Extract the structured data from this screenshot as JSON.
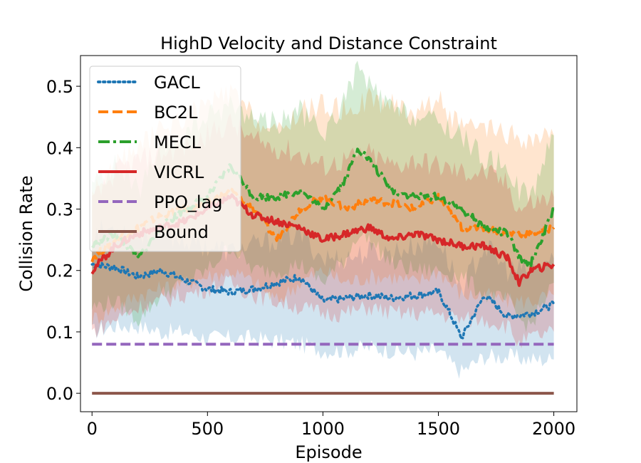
{
  "chart_data": {
    "type": "line",
    "title": "HighD Velocity and Distance Constraint",
    "xlabel": "Episode",
    "ylabel": "Collision Rate",
    "xlim": [
      -50,
      2100
    ],
    "ylim": [
      -0.03,
      0.55
    ],
    "xticks": [
      0,
      500,
      1000,
      1500,
      2000
    ],
    "xtick_labels": [
      "0",
      "500",
      "1000",
      "1500",
      "2000"
    ],
    "yticks": [
      0.0,
      0.1,
      0.2,
      0.3,
      0.4,
      0.5
    ],
    "ytick_labels": [
      "0.0",
      "0.1",
      "0.2",
      "0.3",
      "0.4",
      "0.5"
    ],
    "legend_position": "top-left",
    "series": [
      {
        "name": "GACL",
        "color": "#1f77b4",
        "style": "dotted",
        "band": true,
        "x": [
          0,
          100,
          200,
          300,
          400,
          500,
          600,
          700,
          800,
          900,
          1000,
          1100,
          1200,
          1300,
          1400,
          1500,
          1550,
          1600,
          1700,
          1800,
          1900,
          2000
        ],
        "values": [
          0.21,
          0.205,
          0.19,
          0.2,
          0.185,
          0.17,
          0.165,
          0.17,
          0.18,
          0.19,
          0.15,
          0.155,
          0.16,
          0.155,
          0.16,
          0.165,
          0.13,
          0.09,
          0.16,
          0.125,
          0.13,
          0.145
        ],
        "lower": [
          0.1,
          0.11,
          0.11,
          0.1,
          0.1,
          0.09,
          0.09,
          0.09,
          0.085,
          0.08,
          0.07,
          0.07,
          0.075,
          0.07,
          0.065,
          0.07,
          0.05,
          0.035,
          0.06,
          0.06,
          0.055,
          0.055
        ],
        "upper": [
          0.26,
          0.27,
          0.26,
          0.26,
          0.25,
          0.24,
          0.23,
          0.24,
          0.25,
          0.26,
          0.22,
          0.22,
          0.23,
          0.23,
          0.24,
          0.25,
          0.21,
          0.17,
          0.24,
          0.2,
          0.2,
          0.22
        ]
      },
      {
        "name": "BC2L",
        "color": "#ff7f0e",
        "style": "dashed",
        "band": true,
        "x": [
          0,
          100,
          200,
          300,
          400,
          500,
          600,
          700,
          800,
          900,
          1000,
          1100,
          1200,
          1300,
          1400,
          1500,
          1600,
          1700,
          1800,
          1900,
          2000
        ],
        "values": [
          0.22,
          0.25,
          0.27,
          0.29,
          0.3,
          0.31,
          0.33,
          0.3,
          0.25,
          0.3,
          0.32,
          0.3,
          0.315,
          0.31,
          0.3,
          0.32,
          0.27,
          0.27,
          0.26,
          0.26,
          0.27
        ],
        "lower": [
          0.12,
          0.14,
          0.16,
          0.17,
          0.18,
          0.19,
          0.2,
          0.18,
          0.15,
          0.18,
          0.2,
          0.18,
          0.19,
          0.19,
          0.18,
          0.2,
          0.16,
          0.16,
          0.15,
          0.15,
          0.16
        ],
        "upper": [
          0.33,
          0.37,
          0.4,
          0.43,
          0.45,
          0.47,
          0.49,
          0.45,
          0.42,
          0.46,
          0.47,
          0.46,
          0.48,
          0.47,
          0.46,
          0.48,
          0.43,
          0.43,
          0.42,
          0.41,
          0.42
        ]
      },
      {
        "name": "MECL",
        "color": "#2ca02c",
        "style": "dashdot",
        "band": true,
        "x": [
          0,
          100,
          200,
          300,
          400,
          500,
          600,
          700,
          800,
          900,
          1000,
          1100,
          1150,
          1200,
          1300,
          1400,
          1500,
          1600,
          1700,
          1800,
          1850,
          1900,
          2000
        ],
        "values": [
          0.24,
          0.26,
          0.22,
          0.27,
          0.3,
          0.32,
          0.37,
          0.32,
          0.32,
          0.33,
          0.3,
          0.35,
          0.4,
          0.38,
          0.33,
          0.32,
          0.32,
          0.3,
          0.27,
          0.26,
          0.22,
          0.21,
          0.3
        ],
        "lower": [
          0.14,
          0.15,
          0.12,
          0.16,
          0.18,
          0.2,
          0.24,
          0.2,
          0.2,
          0.21,
          0.18,
          0.22,
          0.26,
          0.25,
          0.21,
          0.2,
          0.2,
          0.19,
          0.16,
          0.15,
          0.12,
          0.11,
          0.18
        ],
        "upper": [
          0.34,
          0.37,
          0.33,
          0.39,
          0.42,
          0.45,
          0.47,
          0.45,
          0.44,
          0.46,
          0.42,
          0.48,
          0.53,
          0.5,
          0.46,
          0.45,
          0.44,
          0.42,
          0.38,
          0.37,
          0.33,
          0.32,
          0.42
        ]
      },
      {
        "name": "VICRL",
        "color": "#d62728",
        "style": "solid",
        "band": true,
        "x": [
          0,
          100,
          200,
          300,
          400,
          500,
          600,
          700,
          800,
          900,
          1000,
          1100,
          1200,
          1300,
          1400,
          1500,
          1600,
          1700,
          1800,
          1850,
          1900,
          2000
        ],
        "values": [
          0.2,
          0.24,
          0.26,
          0.27,
          0.28,
          0.3,
          0.32,
          0.29,
          0.28,
          0.27,
          0.25,
          0.26,
          0.27,
          0.25,
          0.26,
          0.25,
          0.24,
          0.24,
          0.22,
          0.18,
          0.2,
          0.21
        ],
        "lower": [
          0.1,
          0.12,
          0.14,
          0.15,
          0.16,
          0.17,
          0.18,
          0.16,
          0.15,
          0.14,
          0.13,
          0.13,
          0.14,
          0.13,
          0.13,
          0.13,
          0.12,
          0.12,
          0.11,
          0.08,
          0.09,
          0.1
        ],
        "upper": [
          0.31,
          0.36,
          0.38,
          0.39,
          0.4,
          0.42,
          0.44,
          0.41,
          0.4,
          0.39,
          0.37,
          0.38,
          0.39,
          0.37,
          0.38,
          0.37,
          0.36,
          0.36,
          0.34,
          0.3,
          0.31,
          0.32
        ]
      },
      {
        "name": "PPO_lag",
        "color": "#9467bd",
        "style": "dashed",
        "band": false,
        "x": [
          0,
          2000
        ],
        "values": [
          0.08,
          0.08
        ]
      },
      {
        "name": "Bound",
        "color": "#8c564b",
        "style": "solid",
        "band": false,
        "x": [
          0,
          2000
        ],
        "values": [
          0.0,
          0.0
        ]
      }
    ]
  }
}
